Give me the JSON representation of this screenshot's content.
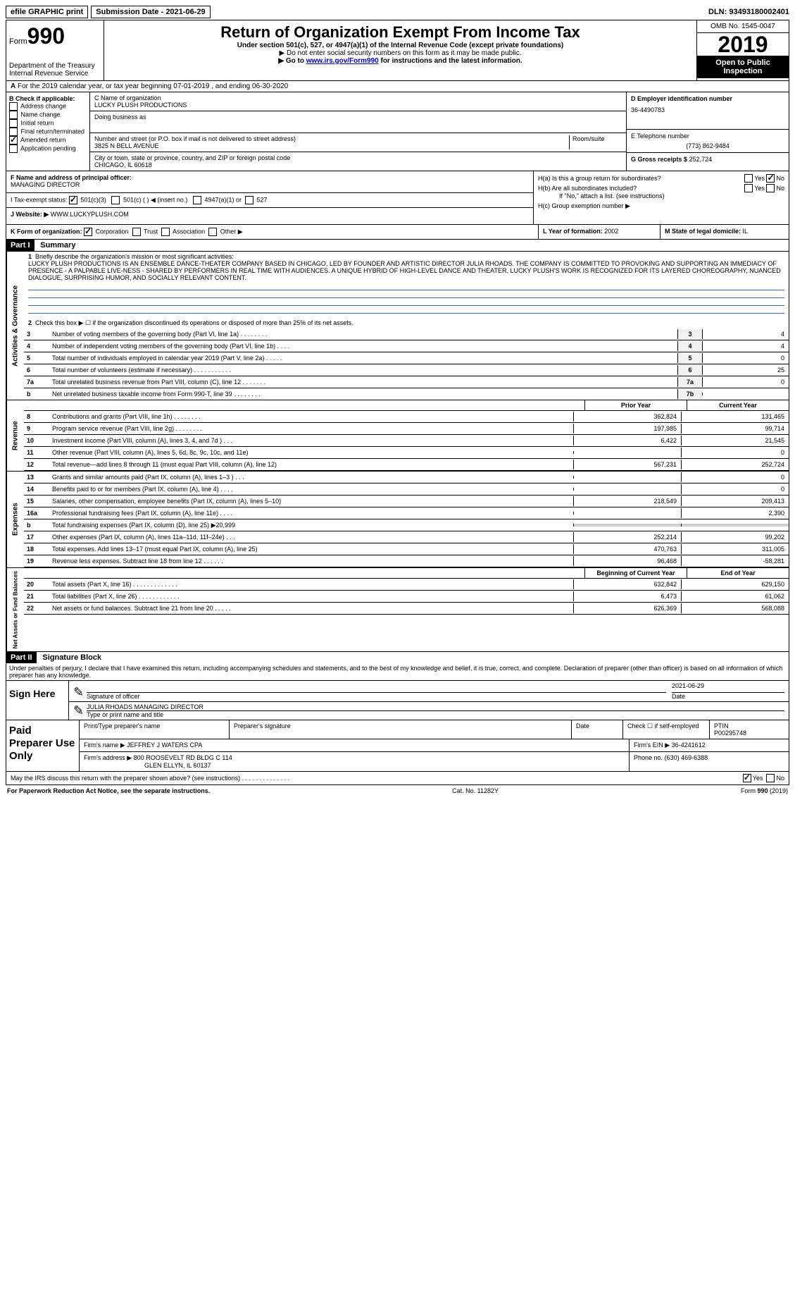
{
  "top": {
    "efile": "efile GRAPHIC print",
    "submission": "Submission Date - 2021-06-29",
    "dln": "DLN: 93493180002401"
  },
  "header": {
    "form_word": "Form",
    "form_num": "990",
    "dept": "Department of the Treasury",
    "irs": "Internal Revenue Service",
    "title": "Return of Organization Exempt From Income Tax",
    "subtitle": "Under section 501(c), 527, or 4947(a)(1) of the Internal Revenue Code (except private foundations)",
    "note1": "▶ Do not enter social security numbers on this form as it may be made public.",
    "note2_pre": "▶ Go to ",
    "note2_link": "www.irs.gov/Form990",
    "note2_post": " for instructions and the latest information.",
    "omb": "OMB No. 1545-0047",
    "year": "2019",
    "open": "Open to Public Inspection"
  },
  "sectionA": "For the 2019 calendar year, or tax year beginning 07-01-2019   , and ending 06-30-2020",
  "B": {
    "title": "B Check if applicable:",
    "items": [
      "Address change",
      "Name change",
      "Initial return",
      "Final return/terminated",
      "Amended return",
      "Application pending"
    ],
    "checked_idx": 4
  },
  "C": {
    "name_label": "C Name of organization",
    "name": "LUCKY PLUSH PRODUCTIONS",
    "dba_label": "Doing business as",
    "street_label": "Number and street (or P.O. box if mail is not delivered to street address)",
    "room_label": "Room/suite",
    "street": "3825 N BELL AVENUE",
    "city_label": "City or town, state or province, country, and ZIP or foreign postal code",
    "city": "CHICAGO, IL  60618"
  },
  "D": {
    "label": "D Employer identification number",
    "val": "36-4490783"
  },
  "E": {
    "label": "E Telephone number",
    "val": "(773) 862-9484"
  },
  "G": {
    "label": "G Gross receipts $",
    "val": "252,724"
  },
  "F": {
    "label": "F  Name and address of principal officer:",
    "val": "MANAGING DIRECTOR"
  },
  "H": {
    "a": "H(a)  Is this a group return for subordinates?",
    "b": "H(b)  Are all subordinates included?",
    "b_note": "If \"No,\" attach a list. (see instructions)",
    "c": "H(c)  Group exemption number ▶",
    "yes": "Yes",
    "no": "No"
  },
  "I": {
    "label": "I   Tax-exempt status:",
    "opts": [
      "501(c)(3)",
      "501(c) (  ) ◀ (insert no.)",
      "4947(a)(1) or",
      "527"
    ]
  },
  "J": {
    "label": "J   Website: ▶",
    "val": "WWW.LUCKYPLUSH.COM"
  },
  "K": {
    "label": "K Form of organization:",
    "opts": [
      "Corporation",
      "Trust",
      "Association",
      "Other ▶"
    ]
  },
  "L": {
    "label": "L Year of formation:",
    "val": "2002"
  },
  "M": {
    "label": "M State of legal domicile:",
    "val": "IL"
  },
  "part1": {
    "header": "Part I",
    "title": "Summary",
    "line1_label": "Briefly describe the organization's mission or most significant activities:",
    "mission": "LUCKY PLUSH PRODUCTIONS IS AN ENSEMBLE DANCE-THEATER COMPANY BASED IN CHICAGO, LED BY FOUNDER AND ARTISTIC DIRECTOR JULIA RHOADS. THE COMPANY IS COMMITTED TO PROVOKING AND SUPPORTING AN IMMEDIACY OF PRESENCE - A PALPABLE LIVE-NESS - SHARED BY PERFORMERS IN REAL TIME WITH AUDIENCES. A UNIQUE HYBRID OF HIGH-LEVEL DANCE AND THEATER, LUCKY PLUSH'S WORK IS RECOGNIZED FOR ITS LAYERED CHOREOGRAPHY, NUANCED DIALOGUE, SURPRISING HUMOR, AND SOCIALLY RELEVANT CONTENT.",
    "line2": "Check this box ▶ ☐  if the organization discontinued its operations or disposed of more than 25% of its net assets.",
    "gov": [
      {
        "n": "3",
        "t": "Number of voting members of the governing body (Part VI, line 1a)   .   .   .   .   .   .   .   .",
        "b": "3",
        "v": "4"
      },
      {
        "n": "4",
        "t": "Number of independent voting members of the governing body (Part VI, line 1b)   .   .   .   .",
        "b": "4",
        "v": "4"
      },
      {
        "n": "5",
        "t": "Total number of individuals employed in calendar year 2019 (Part V, line 2a)   .   .   .   .   .",
        "b": "5",
        "v": "0"
      },
      {
        "n": "6",
        "t": "Total number of volunteers (estimate if necessary)   .   .   .   .   .   .   .   .   .   .   .",
        "b": "6",
        "v": "25"
      },
      {
        "n": "7a",
        "t": "Total unrelated business revenue from Part VIII, column (C), line 12   .   .   .   .   .   .   .",
        "b": "7a",
        "v": "0"
      },
      {
        "n": "  b",
        "t": "Net unrelated business taxable income from Form 990-T, line 39   .   .   .   .   .   .   .   .",
        "b": "7b",
        "v": ""
      }
    ],
    "col_prior": "Prior Year",
    "col_current": "Current Year",
    "revenue": [
      {
        "n": "8",
        "t": "Contributions and grants (Part VIII, line 1h)   .   .   .   .   .   .   .   .",
        "p": "362,824",
        "c": "131,465"
      },
      {
        "n": "9",
        "t": "Program service revenue (Part VIII, line 2g)   .   .   .   .   .   .   .   .",
        "p": "197,985",
        "c": "99,714"
      },
      {
        "n": "10",
        "t": "Investment income (Part VIII, column (A), lines 3, 4, and 7d )   .   .   .",
        "p": "6,422",
        "c": "21,545"
      },
      {
        "n": "11",
        "t": "Other revenue (Part VIII, column (A), lines 5, 6d, 8c, 9c, 10c, and 11e)",
        "p": "",
        "c": "0"
      },
      {
        "n": "12",
        "t": "Total revenue—add lines 8 through 11 (must equal Part VIII, column (A), line 12)",
        "p": "567,231",
        "c": "252,724"
      }
    ],
    "expenses": [
      {
        "n": "13",
        "t": "Grants and similar amounts paid (Part IX, column (A), lines 1–3 )   .   .   .",
        "p": "",
        "c": "0"
      },
      {
        "n": "14",
        "t": "Benefits paid to or for members (Part IX, column (A), line 4)   .   .   .   .",
        "p": "",
        "c": "0"
      },
      {
        "n": "15",
        "t": "Salaries, other compensation, employee benefits (Part IX, column (A), lines 5–10)",
        "p": "218,549",
        "c": "209,413"
      },
      {
        "n": "16a",
        "t": "Professional fundraising fees (Part IX, column (A), line 11e)   .   .   .   .",
        "p": "",
        "c": "2,390"
      },
      {
        "n": "b",
        "t": "Total fundraising expenses (Part IX, column (D), line 25) ▶20,999",
        "p": "SHADE",
        "c": "SHADE"
      },
      {
        "n": "17",
        "t": "Other expenses (Part IX, column (A), lines 11a–11d, 11f–24e)   .   .   .",
        "p": "252,214",
        "c": "99,202"
      },
      {
        "n": "18",
        "t": "Total expenses. Add lines 13–17 (must equal Part IX, column (A), line 25)",
        "p": "470,763",
        "c": "311,005"
      },
      {
        "n": "19",
        "t": "Revenue less expenses. Subtract line 18 from line 12   .   .   .   .   .   .",
        "p": "96,468",
        "c": "-58,281"
      }
    ],
    "col_begin": "Beginning of Current Year",
    "col_end": "End of Year",
    "netassets": [
      {
        "n": "20",
        "t": "Total assets (Part X, line 16)   .   .   .   .   .   .   .   .   .   .   .   .   .",
        "p": "632,842",
        "c": "629,150"
      },
      {
        "n": "21",
        "t": "Total liabilities (Part X, line 26)   .   .   .   .   .   .   .   .   .   .   .   .",
        "p": "6,473",
        "c": "61,062"
      },
      {
        "n": "22",
        "t": "Net assets or fund balances. Subtract line 21 from line 20   .   .   .   .   .",
        "p": "626,369",
        "c": "568,088"
      }
    ],
    "vert_gov": "Activities & Governance",
    "vert_rev": "Revenue",
    "vert_exp": "Expenses",
    "vert_net": "Net Assets or Fund Balances"
  },
  "part2": {
    "header": "Part II",
    "title": "Signature Block",
    "penalty": "Under penalties of perjury, I declare that I have examined this return, including accompanying schedules and statements, and to the best of my knowledge and belief, it is true, correct, and complete. Declaration of preparer (other than officer) is based on all information of which preparer has any knowledge.",
    "sign_here": "Sign Here",
    "sig_officer": "Signature of officer",
    "sig_date": "2021-06-29",
    "date_label": "Date",
    "officer_name": "JULIA RHOADS  MANAGING DIRECTOR",
    "type_name": "Type or print name and title",
    "paid_prep": "Paid Preparer Use Only",
    "print_name_label": "Print/Type preparer's name",
    "prep_sig_label": "Preparer's signature",
    "check_self": "Check ☐ if self-employed",
    "ptin_label": "PTIN",
    "ptin": "P00295748",
    "firm_name_label": "Firm's name    ▶",
    "firm_name": "JEFFREY J WATERS CPA",
    "firm_ein_label": "Firm's EIN ▶",
    "firm_ein": "36-4241612",
    "firm_addr_label": "Firm's address ▶",
    "firm_addr1": "800 ROOSEVELT RD BLDG C 114",
    "firm_addr2": "GLEN ELLYN, IL  60137",
    "phone_label": "Phone no.",
    "phone": "(630) 469-6388",
    "discuss": "May the IRS discuss this return with the preparer shown above? (see instructions)   .   .   .   .   .   .   .   .   .   .   .   .   .   .",
    "yes": "Yes",
    "no": "No"
  },
  "footer": {
    "left": "For Paperwork Reduction Act Notice, see the separate instructions.",
    "center": "Cat. No. 11282Y",
    "right": "Form 990 (2019)"
  }
}
